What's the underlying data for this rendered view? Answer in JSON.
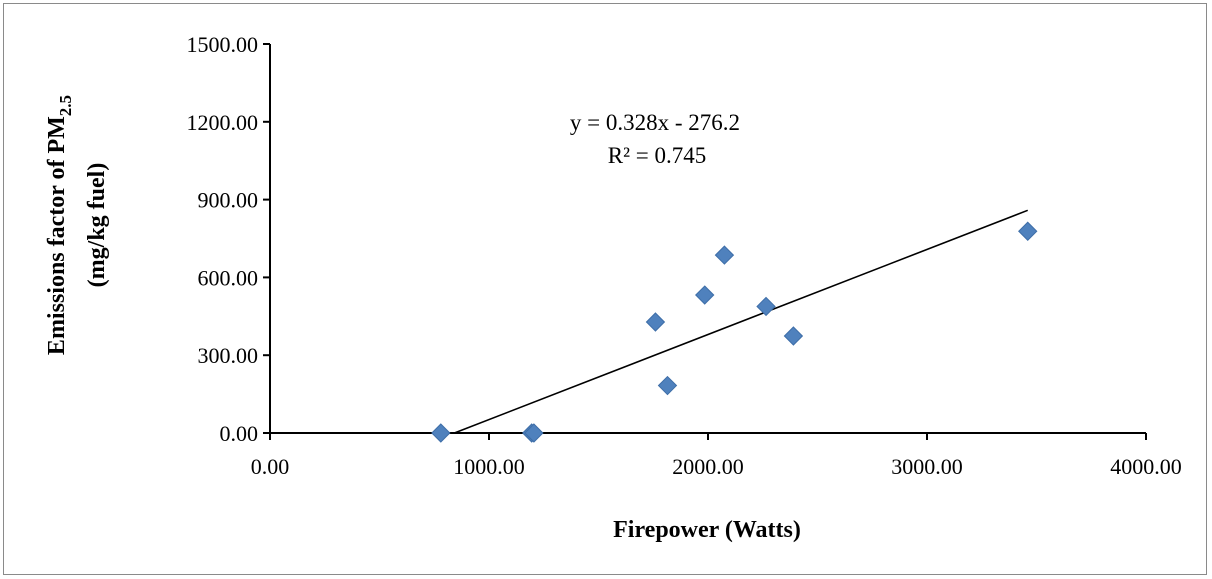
{
  "chart_data": {
    "type": "scatter",
    "title": "",
    "xlabel": "Firepower (Watts)",
    "ylabel_line1_text": "Emissions factor of PM",
    "ylabel_line1_subscript": "2.5",
    "ylabel_line2": "(mg/kg fuel)",
    "xlim": [
      0,
      4000
    ],
    "ylim": [
      0,
      1500
    ],
    "x_ticks": [
      0,
      1000,
      2000,
      3000,
      4000
    ],
    "y_ticks": [
      0,
      300,
      600,
      900,
      1200,
      1500
    ],
    "x_tick_labels": [
      "0.00",
      "1000.00",
      "2000.00",
      "3000.00",
      "4000.00"
    ],
    "y_tick_labels": [
      "0.00",
      "300.00",
      "600.00",
      "900.00",
      "1200.00",
      "1500.00"
    ],
    "grid": false,
    "series": [
      {
        "marker": "diamond",
        "color": "#4f81bd",
        "points": [
          {
            "x": 780,
            "y": 0
          },
          {
            "x": 1195,
            "y": 0
          },
          {
            "x": 1205,
            "y": 0
          },
          {
            "x": 1760,
            "y": 428
          },
          {
            "x": 1815,
            "y": 183
          },
          {
            "x": 1985,
            "y": 532
          },
          {
            "x": 2075,
            "y": 686
          },
          {
            "x": 2265,
            "y": 488
          },
          {
            "x": 2390,
            "y": 374
          },
          {
            "x": 3460,
            "y": 778
          }
        ]
      }
    ],
    "trendline": {
      "slope": 0.328,
      "intercept": -276.2,
      "x_range": [
        842,
        3460
      ],
      "color": "#000000",
      "equation_text": "y = 0.328x - 276.2",
      "r2_text": "R² = 0.745"
    }
  }
}
